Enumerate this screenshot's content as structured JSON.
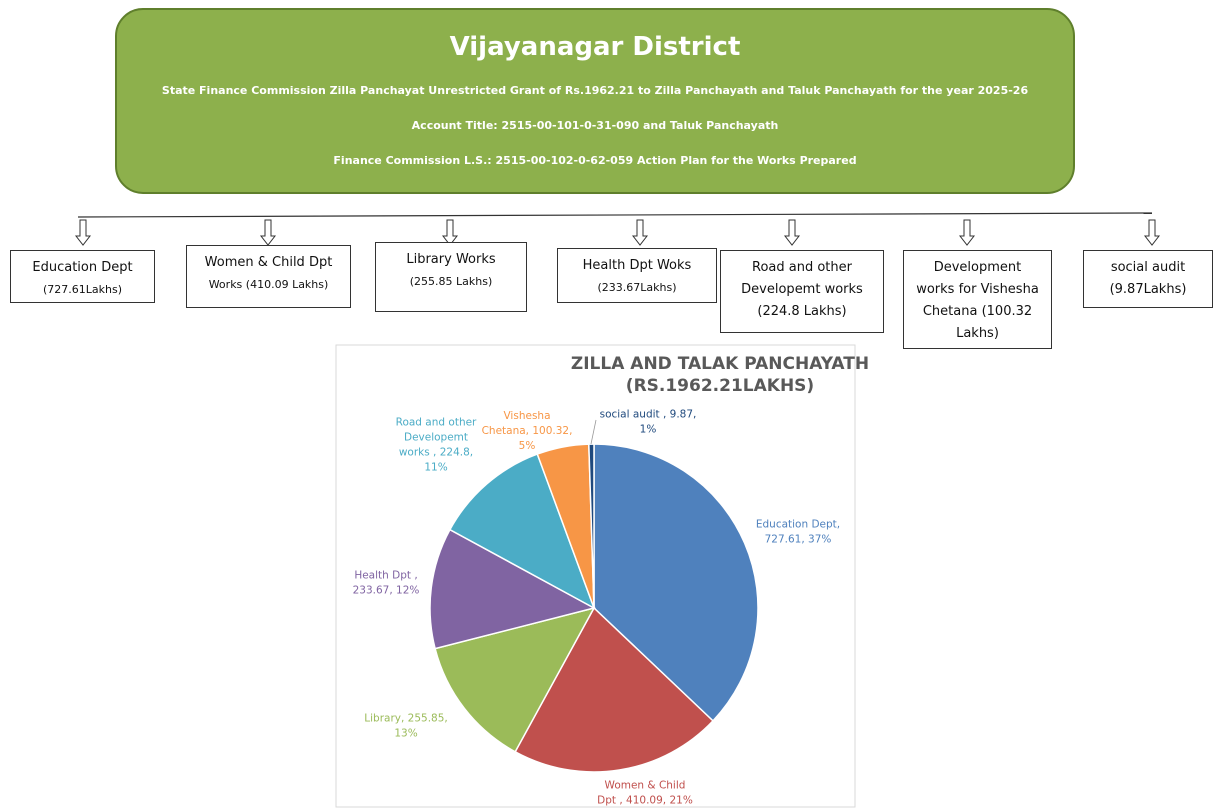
{
  "header": {
    "title": "Vijayanagar District",
    "lines": [
      "State Finance Commission Zilla Panchayat Unrestricted Grant of Rs.1962.21 to Zilla Panchayath and Taluk Panchayath for the year 2025-26",
      "Account Title: 2515-00-101-0-31-090 and Taluk Panchayath",
      "Finance Commission L.S.: 2515-00-102-0-62-059 Action Plan for the Works Prepared"
    ]
  },
  "boxes": [
    {
      "lines": [
        "Education Dept",
        "(727.61Lakhs)"
      ]
    },
    {
      "lines": [
        "Women & Child Dpt",
        "Works (410.09 Lakhs)"
      ]
    },
    {
      "lines": [
        "Library Works",
        "(255.85 Lakhs)"
      ]
    },
    {
      "lines": [
        "Health Dpt Woks",
        "(233.67Lakhs)"
      ]
    },
    {
      "lines": [
        "Road and other",
        "Developemt works",
        "(224.8 Lakhs)"
      ]
    },
    {
      "lines": [
        "Development",
        "works for Vishesha",
        "Chetana (100.32",
        "Lakhs)"
      ]
    },
    {
      "lines": [
        "social audit",
        "(9.87Lakhs)"
      ]
    }
  ],
  "chart_data": {
    "type": "pie",
    "title": [
      "ZILLA AND TALAK PANCHAYATH",
      "(RS.1962.21LAKHS)"
    ],
    "values": [
      727.61,
      410.09,
      255.85,
      233.67,
      224.8,
      100.32,
      9.87
    ],
    "value_labels": [
      [
        "Education Dept,",
        "727.61, 37%"
      ],
      [
        "Women & Child",
        "Dpt , 410.09, 21%"
      ],
      [
        "Library, 255.85,",
        "13%"
      ],
      [
        "Health Dpt ,",
        "233.67, 12%"
      ],
      [
        "Road and other",
        "Developemt",
        "works , 224.8,",
        "11%"
      ],
      [
        "Vishesha",
        "Chetana, 100.32,",
        "5%"
      ],
      [
        "social audit , 9.87,",
        "1%"
      ]
    ],
    "colors": [
      "#4f81bd",
      "#c0504d",
      "#9bbb59",
      "#8064a2",
      "#4bacc6",
      "#f79646",
      "#1f497d"
    ]
  }
}
